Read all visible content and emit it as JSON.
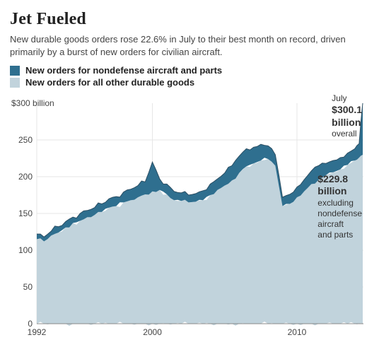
{
  "chart": {
    "type": "stacked-area",
    "title": "Jet Fueled",
    "subtitle": "New durable goods orders rose 22.6% in July to their best month on record, driven primarily by a burst of new orders for civilian aircraft.",
    "title_fontsize": 24,
    "subtitle_fontsize": 13,
    "font_family_title": "Georgia",
    "font_family_body": "Arial",
    "background_color": "#ffffff",
    "plot_background_color": "#ffffff",
    "grid_color": "#e6e6e6",
    "axis_color": "#888888",
    "tick_label_color": "#444444",
    "legend": {
      "items": [
        {
          "key": "aircraft",
          "label": "New orders for nondefense aircraft and parts",
          "color": "#2f6f8f"
        },
        {
          "key": "other",
          "label": "New orders for all other durable goods",
          "color": "#c1d3dc"
        }
      ],
      "fontsize": 13,
      "fontweight": "bold"
    },
    "yaxis": {
      "label": "$300 billion",
      "lim": [
        0,
        300
      ],
      "ticks": [
        0,
        50,
        100,
        150,
        200,
        250
      ],
      "tick_labels": [
        "0",
        "50",
        "100",
        "150",
        "200",
        "250"
      ],
      "top_label": "$300 billion",
      "fontsize": 12
    },
    "xaxis": {
      "lim": [
        1992,
        2014.6
      ],
      "ticks": [
        1992,
        2000,
        2010
      ],
      "tick_labels": [
        "1992",
        "2000",
        "2010"
      ],
      "fontsize": 12
    },
    "series_colors": {
      "other_fill": "#c1d3dc",
      "aircraft_fill": "#2f6f8f",
      "aircraft_line": "#2b4e63"
    },
    "line_width": 1,
    "data": {
      "x": [
        1992.0,
        1992.5,
        1993.0,
        1993.5,
        1994.0,
        1994.5,
        1995.0,
        1995.5,
        1996.0,
        1996.5,
        1997.0,
        1997.5,
        1998.0,
        1998.5,
        1999.0,
        1999.5,
        2000.0,
        2000.5,
        2001.0,
        2001.5,
        2002.0,
        2002.5,
        2003.0,
        2003.5,
        2004.0,
        2004.5,
        2005.0,
        2005.5,
        2006.0,
        2006.5,
        2007.0,
        2007.5,
        2008.0,
        2008.5,
        2009.0,
        2009.5,
        2010.0,
        2010.5,
        2011.0,
        2011.5,
        2012.0,
        2012.5,
        2013.0,
        2013.5,
        2014.0,
        2014.3,
        2014.55
      ],
      "other": [
        115,
        112,
        120,
        124,
        131,
        137,
        140,
        145,
        148,
        152,
        158,
        160,
        165,
        168,
        172,
        176,
        180,
        182,
        176,
        168,
        167,
        165,
        166,
        168,
        175,
        182,
        188,
        195,
        205,
        214,
        218,
        222,
        224,
        215,
        160,
        163,
        172,
        180,
        190,
        196,
        202,
        206,
        210,
        216,
        222,
        226,
        229.8
      ],
      "total": [
        122,
        118,
        126,
        132,
        139,
        145,
        150,
        154,
        158,
        163,
        170,
        173,
        179,
        183,
        188,
        193,
        220,
        197,
        190,
        180,
        178,
        175,
        177,
        181,
        190,
        197,
        205,
        215,
        228,
        238,
        240,
        244,
        242,
        230,
        172,
        176,
        186,
        196,
        208,
        215,
        218,
        222,
        226,
        232,
        238,
        245,
        300.1
      ]
    },
    "callouts": {
      "top": {
        "month": "July",
        "value_bold": "$300.1",
        "value_bold2": "billion",
        "note": "overall"
      },
      "mid": {
        "value_bold": "$229.8",
        "value_bold2": "billion",
        "note1": "excluding",
        "note2": "nondefense",
        "note3": "aircraft",
        "note4": "and parts"
      },
      "fontsize": 12,
      "fontsize_bold": 14
    }
  }
}
